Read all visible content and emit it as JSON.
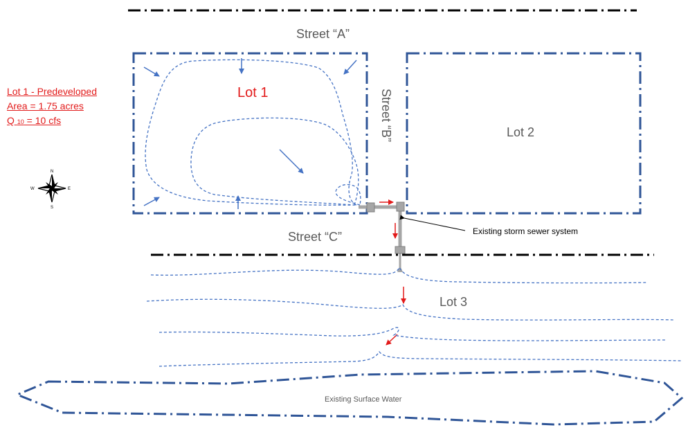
{
  "labels": {
    "street_a": "Street “A”",
    "street_b": "Street “B”",
    "street_c": "Street “C”",
    "lot1": "Lot 1",
    "lot2": "Lot 2",
    "lot3": "Lot 3",
    "storm_sewer": "Existing storm sewer system",
    "surface_water": "Existing Surface Water"
  },
  "lot1_note": {
    "line1": "Lot 1 - Predeveloped",
    "line2": "Area = 1.75 acres",
    "line3_q": "Q",
    "line3_sub": "10",
    "line3_rest": " = 10 cfs"
  },
  "compass": {
    "n": "N",
    "s": "S",
    "e": "E",
    "w": "W"
  },
  "colors": {
    "boundary": "#2f5597",
    "contour": "#4472c4",
    "flow_arrow_blue": "#4472c4",
    "flow_arrow_red": "#e21a1a",
    "street_line": "#000000",
    "pipe": "#a6a6a6",
    "label_red": "#e21a1a",
    "label_gray": "#595959"
  }
}
